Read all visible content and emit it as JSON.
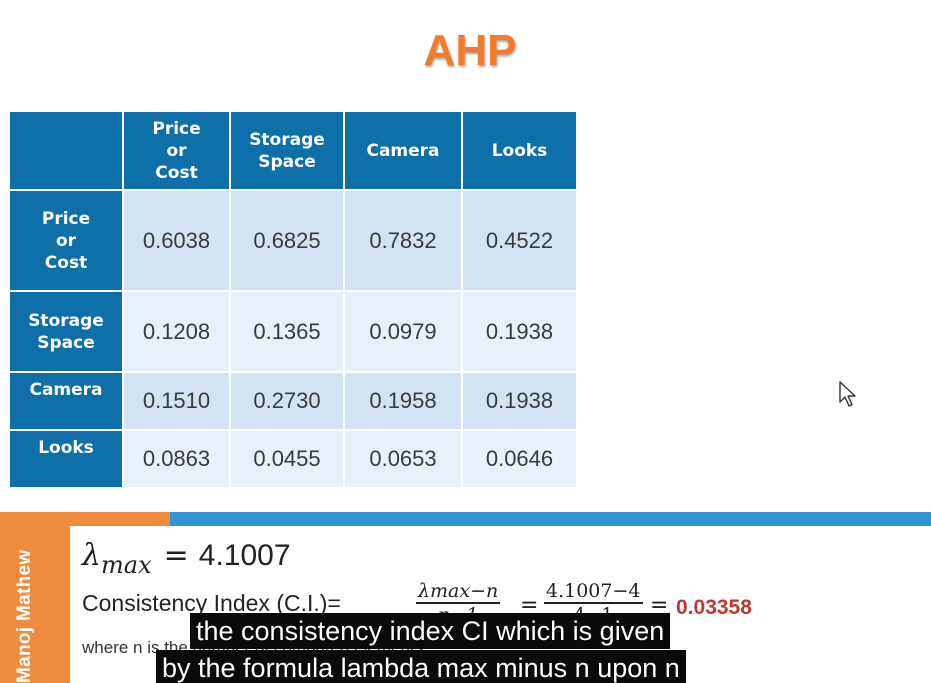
{
  "slide": {
    "title": "AHP",
    "title_color": "#f3792b"
  },
  "table": {
    "header_color": "#0f6fa8",
    "columns": [
      "Price or Cost",
      "Storage Space",
      "Camera",
      "Looks"
    ],
    "column_lines": [
      [
        "Price",
        "or",
        "Cost"
      ],
      [
        "Storage",
        "Space"
      ],
      [
        "Camera"
      ],
      [
        "Looks"
      ]
    ],
    "rows": [
      {
        "label_lines": [
          "Price",
          "or",
          "Cost"
        ],
        "values": [
          "0.6038",
          "0.6825",
          "0.7832",
          "0.4522"
        ]
      },
      {
        "label_lines": [
          "Storage",
          "Space"
        ],
        "values": [
          "0.1208",
          "0.1365",
          "0.0979",
          "0.1938"
        ]
      },
      {
        "label_lines": [
          "Camera"
        ],
        "values": [
          "0.1510",
          "0.2730",
          "0.1958",
          "0.1938"
        ]
      },
      {
        "label_lines": [
          "Looks"
        ],
        "values": [
          "0.0863",
          "0.0455",
          "0.0653",
          "0.0646"
        ]
      }
    ]
  },
  "formula": {
    "lambda_symbol": "λ",
    "lambda_sub": "max",
    "equals": "=",
    "lambda_value": "4.1007",
    "ci_label": "Consistency Index (C.I.)=",
    "frac1_num": "λmax−n",
    "frac1_den": "n−1",
    "frac2_num": "4.1007−4",
    "frac2_den": "4−1",
    "ci_value": "0.03358",
    "ci_value_color": "#c0392b",
    "where_text": "where n is the number of compared elements"
  },
  "presenter": {
    "name": "Manoj Mathew"
  },
  "captions": {
    "line1": "the consistency index CI which is given",
    "line2": "by the formula lambda max minus n upon n"
  },
  "colors": {
    "accent_orange": "#f08a3c",
    "accent_blue": "#2e95d3"
  }
}
